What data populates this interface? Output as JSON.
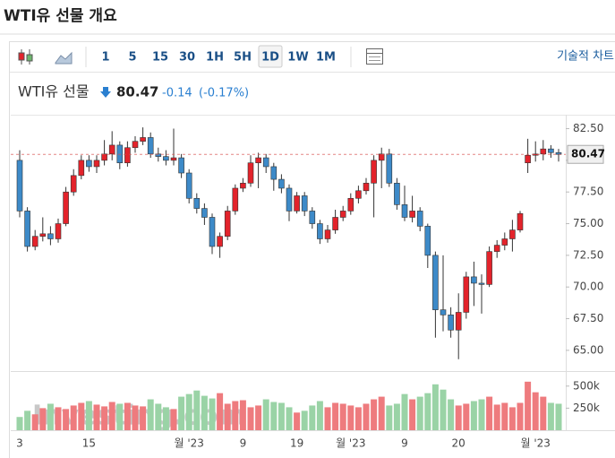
{
  "page_title": "WTI유 선물 개요",
  "toolbar": {
    "intervals": [
      "1",
      "5",
      "15",
      "30",
      "1H",
      "5H",
      "1D",
      "1W",
      "1M"
    ],
    "selected": 6,
    "technical": "기술적 차트"
  },
  "chart_data": {
    "type": "candlestick",
    "name": "WTI유 선물",
    "last_price": 80.47,
    "change": -0.14,
    "change_pct": "(-0.17%)",
    "watermark": "Investing.com",
    "up_color": "#e3232b",
    "down_color": "#3d8ac8",
    "volume_up_color": "#ee7b7e",
    "volume_down_color": "#9ad3a6",
    "categories": [
      "3",
      null,
      null,
      null,
      null,
      null,
      null,
      null,
      null,
      "15",
      null,
      null,
      null,
      null,
      null,
      null,
      null,
      null,
      null,
      null,
      null,
      null,
      "월 '23",
      null,
      null,
      null,
      null,
      null,
      null,
      "9",
      null,
      null,
      null,
      null,
      null,
      null,
      "19",
      null,
      null,
      null,
      null,
      null,
      null,
      "월 '23",
      null,
      null,
      null,
      null,
      null,
      null,
      "9",
      null,
      null,
      null,
      null,
      null,
      null,
      "20",
      null,
      null,
      null,
      null,
      null,
      null,
      null,
      null,
      null,
      "월 '23",
      null,
      null,
      null
    ],
    "open": [
      80.0,
      76.0,
      73.2,
      74.0,
      74.2,
      73.8,
      75.0,
      77.5,
      78.8,
      80.0,
      79.5,
      80.0,
      80.5,
      81.2,
      79.8,
      81.0,
      81.5,
      81.8,
      80.5,
      80.3,
      80.0,
      80.2,
      79.0,
      77.0,
      76.2,
      75.5,
      73.2,
      74.0,
      76.0,
      77.8,
      78.2,
      79.8,
      80.2,
      79.5,
      78.5,
      77.8,
      76.0,
      77.2,
      76.0,
      75.0,
      73.8,
      74.5,
      75.5,
      76.0,
      77.0,
      77.6,
      78.2,
      80.0,
      80.5,
      78.2,
      76.5,
      75.5,
      76.0,
      74.8,
      72.5,
      68.2,
      67.8,
      66.6,
      68.0,
      70.8,
      70.3,
      70.2,
      72.8,
      73.3,
      73.8,
      74.5,
      79.8,
      80.4,
      80.5,
      80.9,
      80.61
    ],
    "high": [
      80.8,
      76.3,
      74.5,
      75.5,
      74.8,
      75.4,
      77.9,
      79.3,
      80.4,
      80.4,
      80.4,
      81.6,
      82.3,
      81.5,
      81.5,
      81.9,
      82.6,
      82.2,
      81.0,
      80.8,
      82.5,
      80.5,
      79.3,
      77.4,
      76.6,
      75.8,
      74.3,
      76.4,
      78.1,
      78.6,
      80.4,
      80.6,
      80.5,
      79.8,
      78.9,
      78.1,
      77.5,
      77.5,
      76.3,
      75.3,
      74.9,
      76.1,
      76.4,
      77.4,
      78.0,
      78.6,
      80.4,
      81.0,
      80.9,
      78.6,
      78.0,
      77.2,
      76.3,
      75.0,
      72.8,
      72.5,
      68.4,
      69.5,
      71.2,
      72.0,
      71.0,
      73.2,
      73.7,
      74.3,
      75.3,
      76.0,
      81.7,
      81.5,
      81.6,
      81.2,
      80.9
    ],
    "low": [
      75.5,
      72.8,
      72.9,
      73.6,
      73.3,
      73.5,
      74.8,
      77.2,
      78.5,
      79.1,
      79.0,
      79.6,
      80.0,
      79.3,
      79.5,
      80.6,
      81.2,
      80.2,
      79.9,
      79.6,
      79.6,
      78.6,
      76.6,
      75.8,
      74.9,
      72.6,
      72.3,
      73.7,
      75.7,
      77.5,
      77.9,
      77.8,
      79.0,
      77.6,
      77.4,
      75.2,
      75.8,
      75.6,
      74.6,
      73.4,
      73.5,
      74.2,
      75.2,
      75.7,
      76.6,
      77.3,
      75.5,
      77.8,
      77.9,
      76.1,
      75.2,
      75.1,
      74.4,
      71.5,
      66.0,
      66.5,
      66.0,
      64.3,
      67.5,
      68.5,
      67.9,
      70.0,
      72.3,
      72.9,
      72.8,
      74.3,
      79.0,
      79.9,
      80.0,
      80.2,
      79.9
    ],
    "close": [
      76.0,
      73.2,
      74.0,
      74.2,
      73.8,
      75.0,
      77.5,
      78.8,
      80.0,
      79.5,
      80.0,
      80.5,
      81.2,
      79.8,
      81.0,
      81.5,
      81.8,
      80.5,
      80.3,
      80.0,
      80.2,
      79.0,
      77.0,
      76.2,
      75.5,
      73.2,
      74.0,
      76.0,
      77.8,
      78.2,
      79.8,
      80.2,
      79.5,
      78.5,
      77.8,
      76.0,
      77.2,
      76.0,
      75.0,
      73.8,
      74.5,
      75.5,
      76.0,
      77.0,
      77.6,
      78.2,
      80.0,
      80.5,
      78.2,
      76.5,
      75.5,
      76.0,
      74.8,
      72.5,
      68.2,
      67.8,
      66.6,
      68.0,
      70.8,
      70.3,
      70.2,
      72.8,
      73.3,
      73.8,
      74.5,
      75.8,
      80.4,
      80.5,
      80.9,
      80.61,
      80.47
    ],
    "volume": [
      150000,
      220000,
      180000,
      250000,
      300000,
      260000,
      240000,
      280000,
      310000,
      330000,
      290000,
      270000,
      320000,
      300000,
      310000,
      280000,
      270000,
      350000,
      300000,
      260000,
      240000,
      380000,
      410000,
      450000,
      390000,
      360000,
      420000,
      300000,
      330000,
      340000,
      260000,
      280000,
      350000,
      320000,
      310000,
      260000,
      200000,
      220000,
      280000,
      330000,
      260000,
      310000,
      300000,
      280000,
      260000,
      300000,
      350000,
      380000,
      280000,
      300000,
      410000,
      350000,
      380000,
      420000,
      520000,
      460000,
      350000,
      280000,
      300000,
      330000,
      350000,
      380000,
      290000,
      310000,
      260000,
      310000,
      550000,
      430000,
      380000,
      310000,
      300000
    ],
    "ylim": [
      64.0,
      83.6
    ],
    "yticks": [
      {
        "value": 65,
        "label": "65.00"
      },
      {
        "value": 67.5,
        "label": "67.50"
      },
      {
        "value": 70,
        "label": "70.00"
      },
      {
        "value": 72.5,
        "label": "72.50"
      },
      {
        "value": 75,
        "label": "75.00"
      },
      {
        "value": 77.5,
        "label": "77.50"
      },
      {
        "value": 80,
        "label": "80.00"
      },
      {
        "value": 82.5,
        "label": "82.50"
      }
    ],
    "vlim": [
      0,
      650000
    ],
    "vticks": [
      {
        "value": 250000,
        "label": "250k"
      },
      {
        "value": 500000,
        "label": "500k"
      }
    ]
  }
}
